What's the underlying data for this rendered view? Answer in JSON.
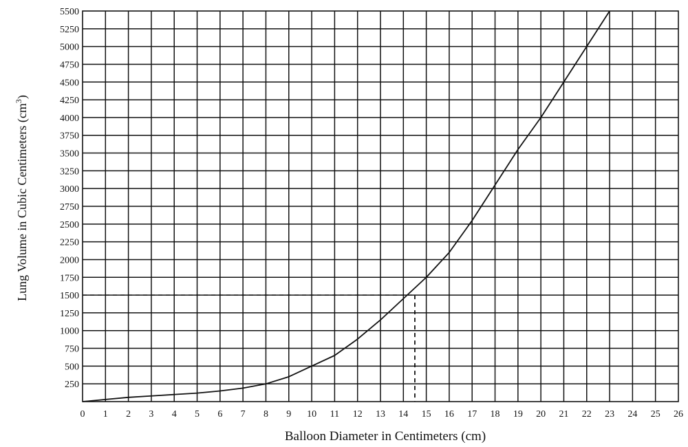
{
  "chart_data": {
    "type": "line",
    "xlabel": "Balloon Diameter in Centimeters (cm)",
    "ylabel": "Lung Volume in Cubic Centimeters (cm",
    "ylabel_superscript": "3",
    "ylabel_close": ")",
    "xlim": [
      0,
      26
    ],
    "ylim": [
      0,
      5500
    ],
    "x_ticks": [
      0,
      1,
      2,
      3,
      4,
      5,
      6,
      7,
      8,
      9,
      10,
      11,
      12,
      13,
      14,
      15,
      16,
      17,
      18,
      19,
      20,
      21,
      22,
      23,
      24,
      25,
      26
    ],
    "y_ticks": [
      250,
      500,
      750,
      1000,
      1250,
      1500,
      1750,
      2000,
      2250,
      2500,
      2750,
      3000,
      3250,
      3500,
      3750,
      4000,
      4250,
      4500,
      4750,
      5000,
      5250,
      5500
    ],
    "grid": true,
    "series": [
      {
        "x": [
          0,
          1,
          2,
          3,
          4,
          5,
          6,
          7,
          8,
          9,
          10,
          11,
          12,
          13,
          14,
          15,
          16,
          17,
          18,
          19,
          20,
          21,
          22,
          23
        ],
        "y": [
          0,
          30,
          60,
          80,
          100,
          120,
          150,
          190,
          250,
          350,
          500,
          650,
          880,
          1150,
          1450,
          1750,
          2100,
          2550,
          3050,
          3550,
          4000,
          4500,
          5000,
          5500
        ]
      }
    ],
    "reference_lines": [
      {
        "x": 14.5,
        "y": 1500,
        "style": "dashed"
      }
    ]
  }
}
